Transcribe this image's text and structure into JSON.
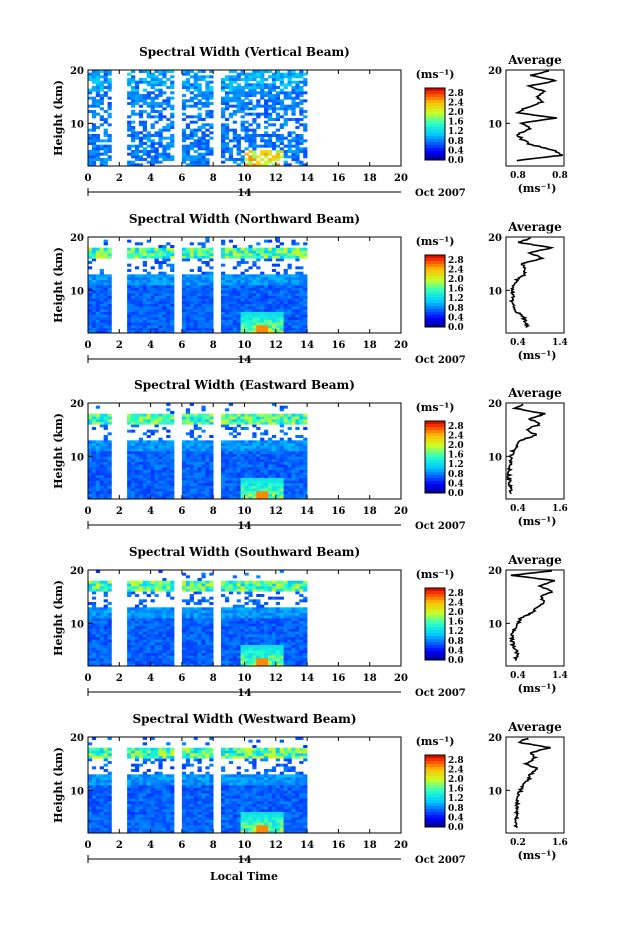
{
  "chart_data": [
    {
      "type": "heatmap",
      "title": "Spectral Width (Vertical Beam)",
      "ylabel": "Height (km)",
      "xticks": [
        "0",
        "2",
        "4",
        "6",
        "8",
        "10",
        "12",
        "14",
        "16",
        "18",
        "20"
      ],
      "yticks": [
        "20",
        "10"
      ],
      "xlim": [
        0,
        20
      ],
      "ylim": [
        2,
        20
      ],
      "date_marker": "14",
      "date_label": "Oct 2007",
      "colorbar": {
        "unit": "(ms⁻¹)",
        "ticks": [
          "2.8",
          "2.4",
          "2.0",
          "1.6",
          "1.2",
          "0.8",
          "0.4",
          "0.0"
        ],
        "range": [
          0,
          3.0
        ]
      },
      "gaps": [
        [
          1.4,
          2.6
        ],
        [
          5.6,
          6.0
        ],
        [
          8.1,
          8.5
        ]
      ],
      "data_end": 14,
      "style": "vertical",
      "profile": {
        "title": "Average",
        "xlabel": "(ms⁻¹)",
        "xlim": [
          0.45,
          0.85
        ],
        "xticks": [
          "0.8",
          "0.8"
        ],
        "yticks": [
          "20",
          "10"
        ],
        "heights": [
          3,
          4,
          5,
          6,
          7,
          8,
          9,
          10,
          11,
          12,
          13,
          14,
          15,
          16,
          17,
          18,
          19,
          20
        ],
        "values": [
          0.52,
          0.83,
          0.78,
          0.62,
          0.56,
          0.53,
          0.62,
          0.55,
          0.8,
          0.52,
          0.6,
          0.7,
          0.66,
          0.72,
          0.6,
          0.8,
          0.62,
          0.76
        ]
      }
    },
    {
      "type": "heatmap",
      "title": "Spectral Width (Northward Beam)",
      "ylabel": "Height (km)",
      "xticks": [
        "0",
        "2",
        "4",
        "6",
        "8",
        "10",
        "12",
        "14",
        "16",
        "18",
        "20"
      ],
      "yticks": [
        "20",
        "10"
      ],
      "xlim": [
        0,
        20
      ],
      "ylim": [
        2,
        20
      ],
      "date_marker": "14",
      "date_label": "Oct 2007",
      "colorbar": {
        "unit": "(ms⁻¹)",
        "ticks": [
          "2.8",
          "2.4",
          "2.0",
          "1.6",
          "1.2",
          "0.8",
          "0.4",
          "0.0"
        ],
        "range": [
          0,
          3.0
        ]
      },
      "gaps": [
        [
          1.4,
          2.6
        ],
        [
          5.6,
          6.0
        ],
        [
          8.1,
          8.5
        ]
      ],
      "data_end": 14,
      "style": "oblique",
      "profile": {
        "title": "Average",
        "xlabel": "(ms⁻¹)",
        "xlim": [
          0.4,
          1.4
        ],
        "xticks": [
          "0.4",
          "1.4"
        ],
        "yticks": [
          "20",
          "10"
        ],
        "heights": [
          3,
          4,
          5,
          6,
          7,
          8,
          9,
          10,
          11,
          12,
          13,
          14,
          15,
          16,
          17,
          18,
          19,
          20
        ],
        "values": [
          0.78,
          0.74,
          0.7,
          0.58,
          0.55,
          0.5,
          0.52,
          0.5,
          0.55,
          0.6,
          0.72,
          0.75,
          0.68,
          1.05,
          0.8,
          1.2,
          0.6,
          0.9
        ]
      }
    },
    {
      "type": "heatmap",
      "title": "Spectral Width (Eastward Beam)",
      "ylabel": "Height (km)",
      "xticks": [
        "0",
        "2",
        "4",
        "6",
        "8",
        "10",
        "12",
        "14",
        "16",
        "18",
        "20"
      ],
      "yticks": [
        "20",
        "10"
      ],
      "xlim": [
        0,
        20
      ],
      "ylim": [
        2,
        20
      ],
      "date_marker": "14",
      "date_label": "Oct 2007",
      "colorbar": {
        "unit": "(ms⁻¹)",
        "ticks": [
          "2.8",
          "2.4",
          "2.0",
          "1.6",
          "1.2",
          "0.8",
          "0.4",
          "0.0"
        ],
        "range": [
          0,
          3.0
        ]
      },
      "gaps": [
        [
          1.4,
          2.6
        ],
        [
          5.6,
          6.0
        ],
        [
          8.1,
          8.5
        ]
      ],
      "data_end": 14,
      "style": "oblique",
      "profile": {
        "title": "Average",
        "xlabel": "(ms⁻¹)",
        "xlim": [
          0.4,
          1.6
        ],
        "xticks": [
          "0.4",
          "1.6"
        ],
        "yticks": [
          "20",
          "10"
        ],
        "heights": [
          3,
          4,
          5,
          6,
          7,
          8,
          9,
          10,
          11,
          12,
          13,
          14,
          15,
          16,
          17,
          18,
          19,
          20
        ],
        "values": [
          0.48,
          0.5,
          0.47,
          0.46,
          0.47,
          0.48,
          0.5,
          0.52,
          0.55,
          0.62,
          0.7,
          1.05,
          0.8,
          1.1,
          0.9,
          1.2,
          0.6,
          0.8
        ]
      }
    },
    {
      "type": "heatmap",
      "title": "Spectral Width (Southward Beam)",
      "ylabel": "Height (km)",
      "xticks": [
        "0",
        "2",
        "4",
        "6",
        "8",
        "10",
        "12",
        "14",
        "16",
        "18",
        "20"
      ],
      "yticks": [
        "20",
        "10"
      ],
      "xlim": [
        0,
        20
      ],
      "ylim": [
        2,
        20
      ],
      "date_marker": "14",
      "date_label": "Oct 2007",
      "colorbar": {
        "unit": "(ms⁻¹)",
        "ticks": [
          "2.8",
          "2.4",
          "2.0",
          "1.6",
          "1.2",
          "0.8",
          "0.4",
          "0.0"
        ],
        "range": [
          0,
          3.0
        ]
      },
      "gaps": [
        [
          1.4,
          2.6
        ],
        [
          5.6,
          6.0
        ],
        [
          8.1,
          8.5
        ]
      ],
      "data_end": 14,
      "style": "oblique",
      "profile": {
        "title": "Average",
        "xlabel": "(ms⁻¹)",
        "xlim": [
          0.4,
          1.4
        ],
        "xticks": [
          "0.4",
          "1.4"
        ],
        "yticks": [
          "20",
          "10"
        ],
        "heights": [
          3,
          4,
          5,
          6,
          7,
          8,
          9,
          10,
          11,
          12,
          13,
          14,
          15,
          16,
          17,
          18,
          19,
          20
        ],
        "values": [
          0.55,
          0.6,
          0.58,
          0.52,
          0.5,
          0.52,
          0.55,
          0.6,
          0.66,
          0.85,
          0.95,
          1.05,
          1.0,
          1.2,
          0.95,
          1.25,
          0.5,
          1.3
        ]
      }
    },
    {
      "type": "heatmap",
      "title": "Spectral Width (Westward Beam)",
      "ylabel": "Height (km)",
      "xticks": [
        "0",
        "2",
        "4",
        "6",
        "8",
        "10",
        "12",
        "14",
        "16",
        "18",
        "20"
      ],
      "yticks": [
        "20",
        "10"
      ],
      "xlim": [
        0,
        20
      ],
      "ylim": [
        2,
        20
      ],
      "date_marker": "14",
      "date_label": "Oct 2007",
      "colorbar": {
        "unit": "(ms⁻¹)",
        "ticks": [
          "2.8",
          "2.4",
          "2.0",
          "1.6",
          "1.2",
          "0.8",
          "0.4",
          "0.0"
        ],
        "range": [
          0,
          3.0
        ]
      },
      "gaps": [
        [
          1.4,
          2.6
        ],
        [
          5.6,
          6.0
        ],
        [
          8.1,
          8.5
        ]
      ],
      "data_end": 14,
      "style": "oblique",
      "profile": {
        "title": "Average",
        "xlabel": "(ms⁻¹)",
        "xlim": [
          0.2,
          1.6
        ],
        "xticks": [
          "0.2",
          "1.6"
        ],
        "yticks": [
          "20",
          "10"
        ],
        "heights": [
          3,
          4,
          5,
          6,
          7,
          8,
          9,
          10,
          11,
          12,
          13,
          14,
          15,
          16,
          17,
          18,
          19,
          20
        ],
        "values": [
          0.45,
          0.46,
          0.44,
          0.45,
          0.46,
          0.48,
          0.5,
          0.55,
          0.62,
          0.75,
          0.8,
          0.95,
          0.7,
          0.9,
          0.8,
          1.25,
          0.5,
          0.8
        ]
      }
    }
  ],
  "xaxis_label": "Local Time"
}
